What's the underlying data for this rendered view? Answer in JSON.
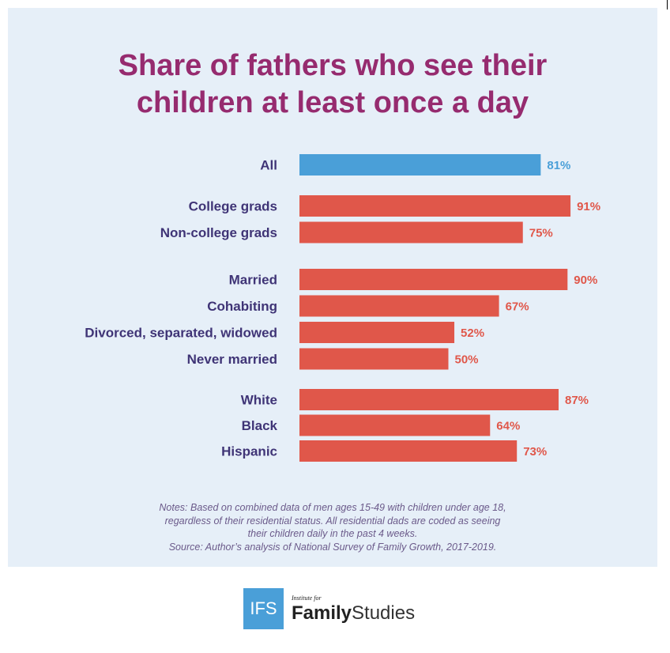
{
  "title": {
    "line1": "Share of fathers who see their",
    "line2": "children at least once a day"
  },
  "chart_data": {
    "type": "bar",
    "orientation": "horizontal",
    "title": "Share of fathers who see their children at least once a day",
    "xlabel": "",
    "ylabel": "",
    "xlim": [
      0,
      100
    ],
    "value_suffix": "%",
    "groups": [
      {
        "name": "all",
        "color": "#4a9fd8",
        "categories": [
          "All"
        ],
        "values": [
          81
        ]
      },
      {
        "name": "education",
        "color": "#e0574a",
        "categories": [
          "College grads",
          "Non-college grads"
        ],
        "values": [
          91,
          75
        ]
      },
      {
        "name": "marital-status",
        "color": "#e0574a",
        "categories": [
          "Married",
          "Cohabiting",
          "Divorced, separated, widowed",
          "Never married"
        ],
        "values": [
          90,
          67,
          52,
          50
        ]
      },
      {
        "name": "race",
        "color": "#e0574a",
        "categories": [
          "White",
          "Black",
          "Hispanic"
        ],
        "values": [
          87,
          64,
          73
        ]
      }
    ]
  },
  "notes": {
    "line1": "Notes: Based on combined data of men ages 15-49 with children under age 18,",
    "line2": "regardless of their residential status. All residential dads are coded as seeing",
    "line3": "their children daily in the past 4 weeks.",
    "line4": "Source: Author’s analysis of National Survey of Family Growth, 2017-2019."
  },
  "footer": {
    "logo_text": "IFS",
    "small_text": "Institute for",
    "family": "Family",
    "studies": "Studies"
  },
  "colors": {
    "title": "#962b6f",
    "label": "#3f3476",
    "all_bar": "#4a9fd8",
    "group_bar": "#e0574a",
    "panel_bg": "#e6eff8"
  }
}
